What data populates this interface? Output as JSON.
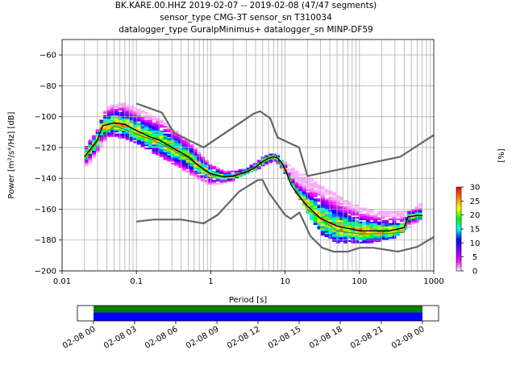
{
  "title_lines": [
    "BK.KARE.00.HHZ   2019-02-07 -- 2019-02-08  (47/47 segments)",
    "sensor_type CMG-3T sensor_sn T310034",
    "datalogger_type GuralpMinimus+ datalogger_sn MINP-DF59"
  ],
  "chart_data": {
    "type": "heatmap",
    "xlabel": "Period [s]",
    "ylabel": "Power [m²/s⁴/Hz] [dB]",
    "xscale": "log",
    "xlim": [
      0.01,
      1000
    ],
    "ylim": [
      -200,
      -50
    ],
    "x_ticks": [
      0.01,
      0.1,
      1,
      10,
      100,
      1000
    ],
    "x_tick_labels": [
      "0.01",
      "0.1",
      "1",
      "10",
      "100",
      "1000"
    ],
    "y_ticks": [
      -200,
      -180,
      -160,
      -140,
      -120,
      -100,
      -80,
      -60
    ],
    "y_tick_labels": [
      "−200",
      "−180",
      "−160",
      "−140",
      "−120",
      "−100",
      "−80",
      "−60"
    ],
    "grid": true,
    "series": [
      {
        "name": "",
        "role": "new-high-noise-model",
        "color": "#666666",
        "x": [
          0.1,
          0.22,
          0.32,
          0.8,
          3.8,
          4.6,
          6.3,
          7.9,
          15.4,
          20,
          354.8,
          1000
        ],
        "y": [
          -91.5,
          -97.4,
          -110.5,
          -120,
          -98,
          -96.5,
          -101,
          -113.5,
          -120,
          -138.5,
          -126,
          -112
        ]
      },
      {
        "name": "",
        "role": "new-low-noise-model",
        "color": "#666666",
        "x": [
          0.1,
          0.17,
          0.4,
          0.8,
          1.24,
          2.4,
          4.3,
          5,
          6,
          10,
          12,
          15.6,
          21.9,
          31.6,
          45,
          70,
          101,
          154,
          328,
          600,
          1000
        ],
        "y": [
          -168,
          -166.7,
          -166.7,
          -169.2,
          -163.7,
          -148.6,
          -141.1,
          -141.1,
          -149,
          -163.8,
          -166.2,
          -162.1,
          -177.5,
          -185,
          -187.5,
          -187.5,
          -185,
          -185,
          -187.5,
          -184.4,
          -178
        ]
      },
      {
        "name": "",
        "role": "median",
        "color": "#000000",
        "x": [
          0.02,
          0.025,
          0.03,
          0.035,
          0.05,
          0.07,
          0.1,
          0.15,
          0.2,
          0.3,
          0.5,
          0.7,
          1,
          1.5,
          2,
          3,
          4,
          5,
          6,
          7,
          8,
          9,
          10,
          12,
          15,
          20,
          30,
          50,
          80,
          100,
          150,
          250,
          400,
          450,
          600,
          700
        ],
        "y": [
          -126,
          -120,
          -115,
          -106,
          -104,
          -105,
          -109,
          -113,
          -115,
          -120,
          -126,
          -132,
          -137,
          -139,
          -138.5,
          -136,
          -133,
          -129,
          -127,
          -126,
          -127,
          -130,
          -134,
          -144,
          -151,
          -158,
          -166,
          -171,
          -173,
          -174,
          -174,
          -174,
          -172,
          -165,
          -164,
          -164
        ]
      },
      {
        "name": "",
        "role": "mode",
        "color": "#2ca02c",
        "x": [
          0.02,
          0.03,
          0.05,
          0.1,
          0.2,
          0.5,
          1,
          2,
          5,
          7,
          10,
          20,
          50,
          100,
          200,
          400,
          450,
          700
        ],
        "y": [
          -128,
          -116,
          -106,
          -111,
          -117,
          -127,
          -138,
          -139,
          -130,
          -127,
          -134,
          -160,
          -174,
          -176,
          -176,
          -175,
          -167,
          -165
        ]
      }
    ],
    "heatmap_envelope": {
      "x": [
        0.02,
        0.03,
        0.04,
        0.06,
        0.1,
        0.2,
        0.5,
        1,
        1.5,
        2,
        3,
        5,
        7,
        10,
        15,
        20,
        30,
        50,
        80,
        150,
        300,
        500,
        700
      ],
      "upper": [
        -122,
        -110,
        -95,
        -92,
        -96,
        -102,
        -117,
        -133,
        -136,
        -137,
        -135,
        -128,
        -125,
        -130,
        -137,
        -140,
        -146,
        -152,
        -158,
        -162,
        -163,
        -162,
        -157
      ],
      "lower": [
        -133,
        -124,
        -113,
        -113,
        -117,
        -125,
        -136,
        -145,
        -143,
        -141,
        -137,
        -132,
        -128,
        -136,
        -151,
        -162,
        -176,
        -181,
        -182,
        -181,
        -178,
        -170,
        -166
      ]
    },
    "colorbar": {
      "label": "[%]",
      "ticks": [
        0,
        5,
        10,
        15,
        20,
        25,
        30
      ],
      "range": [
        0,
        30
      ],
      "colormap_stops": [
        "#ffffff",
        "#ff00ff",
        "#8000ff",
        "#0000ff",
        "#00ffff",
        "#00ff00",
        "#ffff00",
        "#ff8000",
        "#ff0000"
      ]
    },
    "coverage": {
      "tick_labels": [
        "02-08 00",
        "02-08 03",
        "02-08 06",
        "02-08 09",
        "02-08 12",
        "02-08 15",
        "02-08 18",
        "02-08 21",
        "02-09 00"
      ],
      "data_color": "#0000ff",
      "processed_color": "#008000",
      "covered_fraction_start": 0.0,
      "covered_fraction_end": 1.0
    }
  }
}
